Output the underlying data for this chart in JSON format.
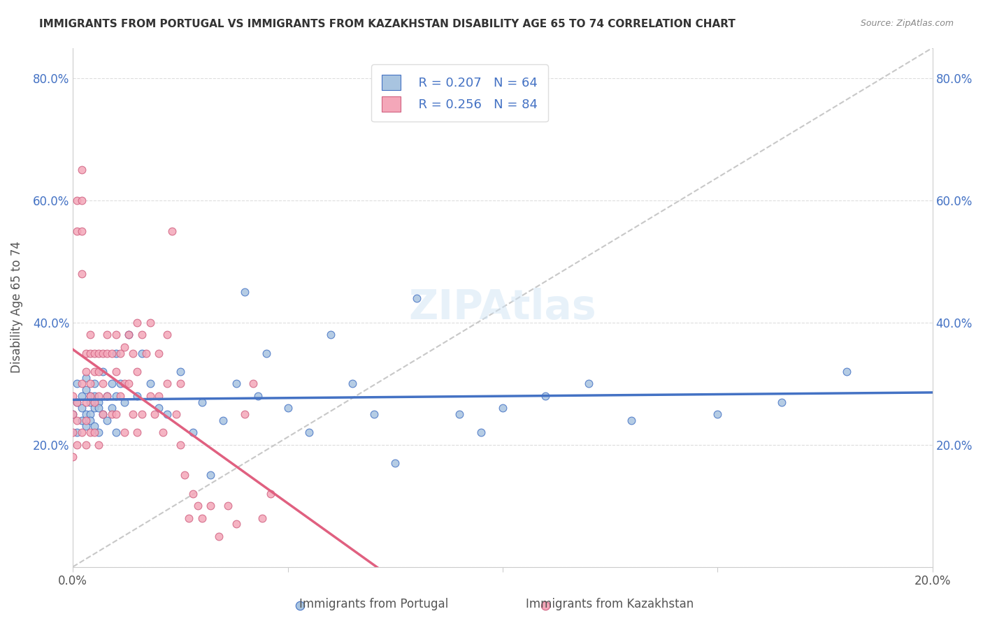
{
  "title": "IMMIGRANTS FROM PORTUGAL VS IMMIGRANTS FROM KAZAKHSTAN DISABILITY AGE 65 TO 74 CORRELATION CHART",
  "source": "Source: ZipAtlas.com",
  "xlabel": "",
  "ylabel": "Disability Age 65 to 74",
  "x_min": 0.0,
  "x_max": 0.2,
  "y_min": 0.0,
  "y_max": 0.85,
  "x_ticks": [
    0.0,
    0.05,
    0.1,
    0.15,
    0.2
  ],
  "x_tick_labels": [
    "0.0%",
    "",
    "",
    "",
    "20.0%"
  ],
  "y_ticks_left": [
    0.0,
    0.2,
    0.4,
    0.6,
    0.8
  ],
  "y_tick_labels_left": [
    "",
    "20.0%",
    "40.0%",
    "60.0%",
    "80.0%"
  ],
  "r_portugal": 0.207,
  "n_portugal": 64,
  "r_kazakhstan": 0.256,
  "n_kazakhstan": 84,
  "portugal_color": "#a8c4e0",
  "kazakhstan_color": "#f4a7b9",
  "portugal_line_color": "#4472c4",
  "kazakhstan_line_color": "#e06080",
  "diagonal_color": "#c8c8c8",
  "legend_label_portugal": "Immigrants from Portugal",
  "legend_label_kazakhstan": "Immigrants from Kazakhstan",
  "portugal_scatter_x": [
    0.0,
    0.001,
    0.001,
    0.001,
    0.002,
    0.002,
    0.002,
    0.003,
    0.003,
    0.003,
    0.003,
    0.004,
    0.004,
    0.004,
    0.004,
    0.005,
    0.005,
    0.005,
    0.005,
    0.006,
    0.006,
    0.006,
    0.007,
    0.007,
    0.008,
    0.008,
    0.009,
    0.009,
    0.01,
    0.01,
    0.01,
    0.011,
    0.012,
    0.013,
    0.015,
    0.016,
    0.018,
    0.02,
    0.022,
    0.025,
    0.028,
    0.03,
    0.032,
    0.035,
    0.038,
    0.04,
    0.043,
    0.045,
    0.05,
    0.055,
    0.06,
    0.065,
    0.07,
    0.075,
    0.08,
    0.09,
    0.095,
    0.1,
    0.11,
    0.12,
    0.13,
    0.15,
    0.165,
    0.18
  ],
  "portugal_scatter_y": [
    0.25,
    0.27,
    0.22,
    0.3,
    0.28,
    0.24,
    0.26,
    0.25,
    0.29,
    0.23,
    0.31,
    0.27,
    0.25,
    0.28,
    0.24,
    0.26,
    0.23,
    0.3,
    0.28,
    0.27,
    0.22,
    0.26,
    0.25,
    0.32,
    0.24,
    0.28,
    0.3,
    0.26,
    0.35,
    0.28,
    0.22,
    0.3,
    0.27,
    0.38,
    0.28,
    0.35,
    0.3,
    0.26,
    0.25,
    0.32,
    0.22,
    0.27,
    0.15,
    0.24,
    0.3,
    0.45,
    0.28,
    0.35,
    0.26,
    0.22,
    0.38,
    0.3,
    0.25,
    0.17,
    0.44,
    0.25,
    0.22,
    0.26,
    0.28,
    0.3,
    0.24,
    0.25,
    0.27,
    0.32
  ],
  "kazakhstan_scatter_x": [
    0.0,
    0.0,
    0.0,
    0.0,
    0.001,
    0.001,
    0.001,
    0.001,
    0.001,
    0.002,
    0.002,
    0.002,
    0.002,
    0.002,
    0.002,
    0.003,
    0.003,
    0.003,
    0.003,
    0.003,
    0.004,
    0.004,
    0.004,
    0.004,
    0.004,
    0.005,
    0.005,
    0.005,
    0.005,
    0.006,
    0.006,
    0.006,
    0.006,
    0.007,
    0.007,
    0.007,
    0.008,
    0.008,
    0.008,
    0.009,
    0.009,
    0.01,
    0.01,
    0.01,
    0.011,
    0.011,
    0.012,
    0.012,
    0.012,
    0.013,
    0.013,
    0.014,
    0.014,
    0.015,
    0.015,
    0.015,
    0.016,
    0.016,
    0.017,
    0.018,
    0.018,
    0.019,
    0.02,
    0.02,
    0.021,
    0.022,
    0.022,
    0.023,
    0.024,
    0.025,
    0.025,
    0.026,
    0.027,
    0.028,
    0.029,
    0.03,
    0.032,
    0.034,
    0.036,
    0.038,
    0.04,
    0.042,
    0.044,
    0.046
  ],
  "kazakhstan_scatter_y": [
    0.25,
    0.22,
    0.28,
    0.18,
    0.6,
    0.55,
    0.27,
    0.24,
    0.2,
    0.65,
    0.6,
    0.55,
    0.48,
    0.3,
    0.22,
    0.35,
    0.32,
    0.27,
    0.24,
    0.2,
    0.38,
    0.35,
    0.3,
    0.28,
    0.22,
    0.35,
    0.32,
    0.27,
    0.22,
    0.35,
    0.32,
    0.28,
    0.2,
    0.35,
    0.3,
    0.25,
    0.38,
    0.35,
    0.28,
    0.35,
    0.25,
    0.38,
    0.32,
    0.25,
    0.35,
    0.28,
    0.36,
    0.3,
    0.22,
    0.38,
    0.3,
    0.35,
    0.25,
    0.4,
    0.32,
    0.22,
    0.38,
    0.25,
    0.35,
    0.4,
    0.28,
    0.25,
    0.35,
    0.28,
    0.22,
    0.38,
    0.3,
    0.55,
    0.25,
    0.3,
    0.2,
    0.15,
    0.08,
    0.12,
    0.1,
    0.08,
    0.1,
    0.05,
    0.1,
    0.07,
    0.25,
    0.3,
    0.08,
    0.12
  ]
}
